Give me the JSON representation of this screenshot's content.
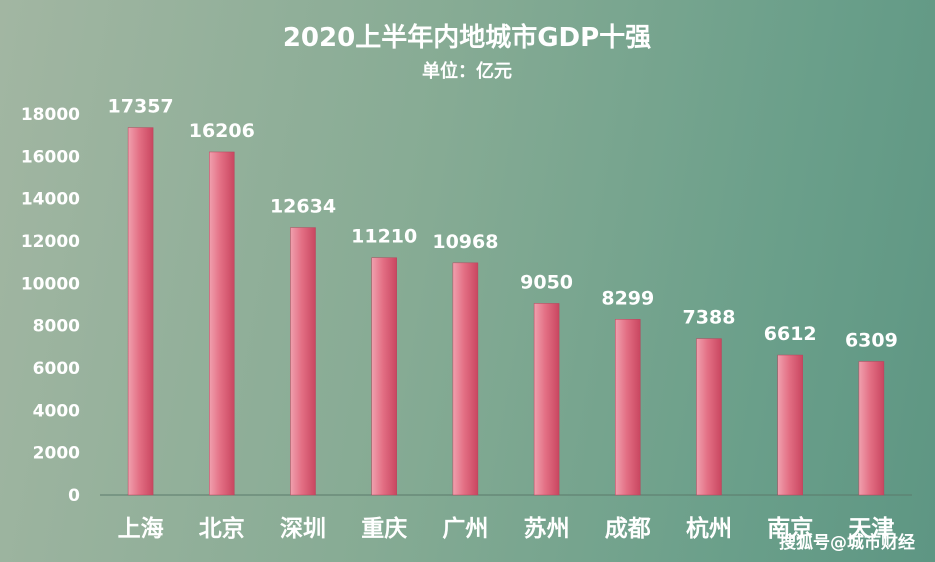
{
  "chart_data": {
    "type": "bar",
    "title": "2020上半年内地城市GDP十强",
    "subtitle": "单位：亿元",
    "categories": [
      "上海",
      "北京",
      "深圳",
      "重庆",
      "广州",
      "苏州",
      "成都",
      "杭州",
      "南京",
      "天津"
    ],
    "values": [
      17357,
      16206,
      12634,
      11210,
      10968,
      9050,
      8299,
      7388,
      6612,
      6309
    ],
    "data_labels": [
      "17357",
      "16206",
      "12634",
      "11210",
      "10968",
      "9050",
      "8299",
      "7388",
      "6612",
      "6309"
    ],
    "yticks": [
      0,
      2000,
      4000,
      6000,
      8000,
      10000,
      12000,
      14000,
      16000,
      18000
    ],
    "ytick_labels": [
      "0",
      "2000",
      "4000",
      "6000",
      "8000",
      "10000",
      "12000",
      "14000",
      "16000",
      "18000"
    ],
    "ylim": [
      0,
      18000
    ],
    "grid": false,
    "legend": "none",
    "bar_color": "#e0647c",
    "xlabel": "",
    "ylabel": ""
  },
  "watermark": "搜狐号@城市财经"
}
